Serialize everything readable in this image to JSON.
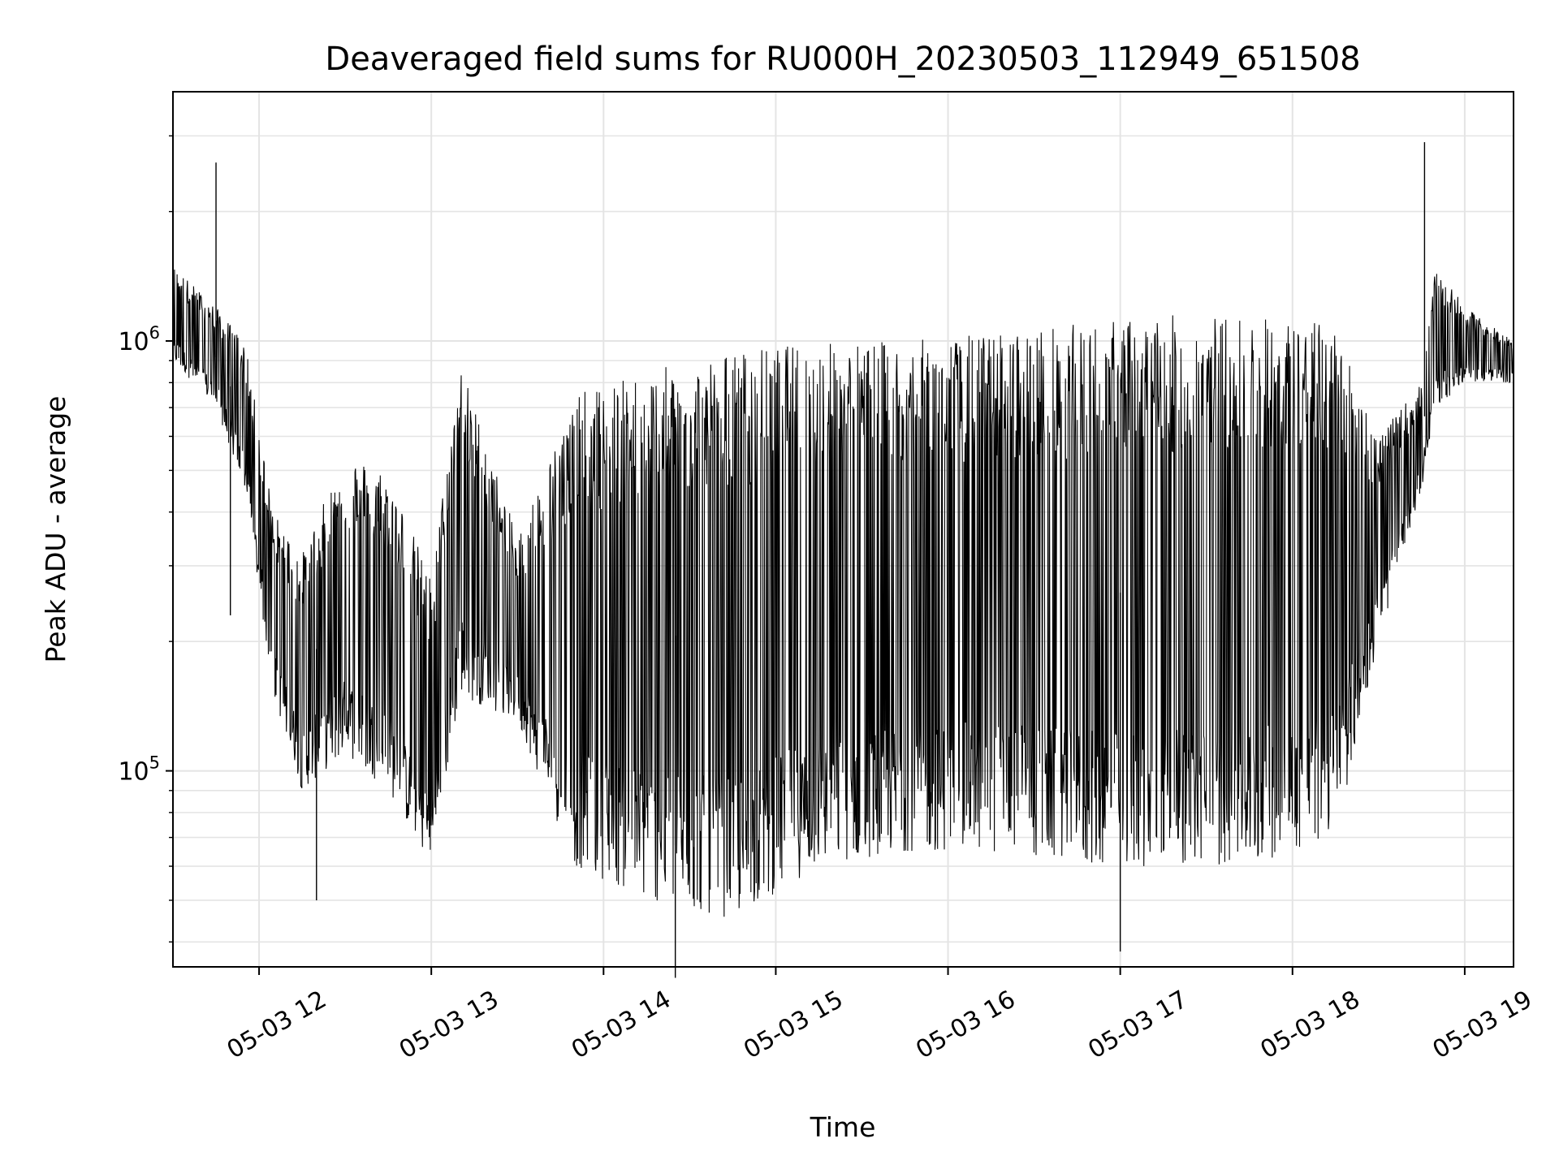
{
  "chart_data": {
    "type": "line",
    "title": "Deaveraged field sums for RU000H_20230503_112949_651508",
    "xlabel": "Time",
    "ylabel": "Peak ADU - average",
    "x_axis": {
      "kind": "time",
      "range": [
        "2023-05-03 11:30",
        "2023-05-03 19:17"
      ],
      "ticks": [
        {
          "value": "2023-05-03 12:00",
          "label": "05-03 12"
        },
        {
          "value": "2023-05-03 13:00",
          "label": "05-03 13"
        },
        {
          "value": "2023-05-03 14:00",
          "label": "05-03 14"
        },
        {
          "value": "2023-05-03 15:00",
          "label": "05-03 15"
        },
        {
          "value": "2023-05-03 16:00",
          "label": "05-03 16"
        },
        {
          "value": "2023-05-03 17:00",
          "label": "05-03 17"
        },
        {
          "value": "2023-05-03 18:00",
          "label": "05-03 18"
        },
        {
          "value": "2023-05-03 19:00",
          "label": "05-03 19"
        }
      ]
    },
    "y_axis": {
      "scale": "log",
      "range": [
        35000,
        3800000
      ],
      "major_ticks": [
        {
          "value": 100000,
          "base": "10",
          "exp": "5"
        },
        {
          "value": 1000000,
          "base": "10",
          "exp": "6"
        }
      ]
    },
    "grid": true,
    "line_color": "#000000",
    "envelope": [
      {
        "t": "2023-05-03 11:30",
        "low": 900000,
        "high": 1500000
      },
      {
        "t": "2023-05-03 11:45",
        "low": 700000,
        "high": 1200000
      },
      {
        "t": "2023-05-03 11:55",
        "low": 450000,
        "high": 1000000
      },
      {
        "t": "2023-05-03 12:05",
        "low": 150000,
        "high": 400000
      },
      {
        "t": "2023-05-03 12:15",
        "low": 90000,
        "high": 320000
      },
      {
        "t": "2023-05-03 12:30",
        "low": 110000,
        "high": 550000
      },
      {
        "t": "2023-05-03 12:45",
        "low": 90000,
        "high": 500000
      },
      {
        "t": "2023-05-03 13:00",
        "low": 60000,
        "high": 280000
      },
      {
        "t": "2023-05-03 13:10",
        "low": 150000,
        "high": 900000
      },
      {
        "t": "2023-05-03 13:30",
        "low": 130000,
        "high": 350000
      },
      {
        "t": "2023-05-03 13:50",
        "low": 60000,
        "high": 750000
      },
      {
        "t": "2023-05-03 14:15",
        "low": 50000,
        "high": 850000
      },
      {
        "t": "2023-05-03 14:45",
        "low": 45000,
        "high": 950000
      },
      {
        "t": "2023-05-03 15:15",
        "low": 60000,
        "high": 1000000
      },
      {
        "t": "2023-05-03 15:45",
        "low": 65000,
        "high": 1000000
      },
      {
        "t": "2023-05-03 16:15",
        "low": 65000,
        "high": 1050000
      },
      {
        "t": "2023-05-03 16:45",
        "low": 60000,
        "high": 1100000
      },
      {
        "t": "2023-05-03 17:15",
        "low": 60000,
        "high": 1150000
      },
      {
        "t": "2023-05-03 17:45",
        "low": 60000,
        "high": 1150000
      },
      {
        "t": "2023-05-03 18:15",
        "low": 70000,
        "high": 1100000
      },
      {
        "t": "2023-05-03 18:30",
        "low": 200000,
        "high": 600000
      },
      {
        "t": "2023-05-03 18:45",
        "low": 450000,
        "high": 800000
      },
      {
        "t": "2023-05-03 18:50",
        "low": 700000,
        "high": 1500000
      },
      {
        "t": "2023-05-03 19:00",
        "low": 800000,
        "high": 1200000
      },
      {
        "t": "2023-05-03 19:17",
        "low": 800000,
        "high": 1000000
      }
    ],
    "spikes": [
      {
        "t": "2023-05-03 11:45",
        "value": 2600000
      },
      {
        "t": "2023-05-03 11:50",
        "value": 230000
      },
      {
        "t": "2023-05-03 12:20",
        "value": 50000
      },
      {
        "t": "2023-05-03 14:25",
        "value": 33000
      },
      {
        "t": "2023-05-03 17:00",
        "value": 38000
      },
      {
        "t": "2023-05-03 18:46",
        "value": 2900000
      }
    ]
  }
}
